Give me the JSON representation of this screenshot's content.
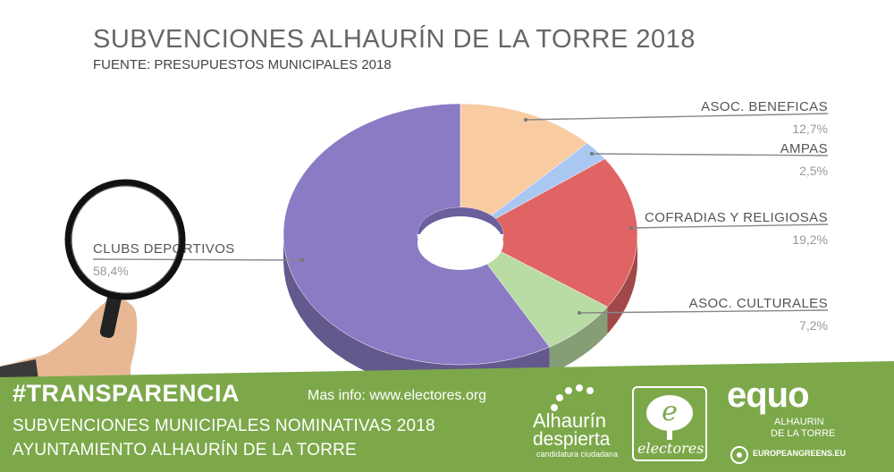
{
  "header": {
    "title": "SUBVENCIONES ALHAURÍN DE LA TORRE 2018",
    "subtitle": "FUENTE: PRESUPUESTOS MUNICIPALES 2018"
  },
  "chart_data": {
    "type": "pie",
    "title": "SUBVENCIONES ALHAURÍN DE LA TORRE 2018",
    "subtitle": "FUENTE: PRESUPUESTOS MUNICIPALES 2018",
    "donut": true,
    "slices": [
      {
        "label": "ASOC. BENEFICAS",
        "value": 12.7,
        "value_label": "12,7%",
        "color": "#f8cba0"
      },
      {
        "label": "AMPAS",
        "value": 2.5,
        "value_label": "2,5%",
        "color": "#aac7f2"
      },
      {
        "label": "COFRADIAS Y RELIGIOSAS",
        "value": 19.2,
        "value_label": "19,2%",
        "color": "#e06464"
      },
      {
        "label": "ASOC. CULTURALES",
        "value": 7.2,
        "value_label": "7,2%",
        "color": "#b9dba4"
      },
      {
        "label": "CLUBS DEPORTIVOS",
        "value": 58.4,
        "value_label": "58,4%",
        "color": "#8a7bc4"
      }
    ]
  },
  "banner": {
    "hashtag": "#TRANSPARENCIA",
    "info": "Mas info: www.electores.org",
    "line1": "SUBVENCIONES MUNICIPALES NOMINATIVAS 2018",
    "line2": "AYUNTAMIENTO ALHAURÍN DE LA TORRE",
    "color": "#7ca84a"
  },
  "logos": {
    "alhaurin_line1": "Alhaurín",
    "alhaurin_line2": "despierta",
    "alhaurin_line3": "candidatura ciudadana",
    "electores": "electores",
    "equo": "equo",
    "equo_sub1": "ALHAURIN",
    "equo_sub2": "DE LA TORRE",
    "greens": "EUROPEANGREENS.EU"
  }
}
